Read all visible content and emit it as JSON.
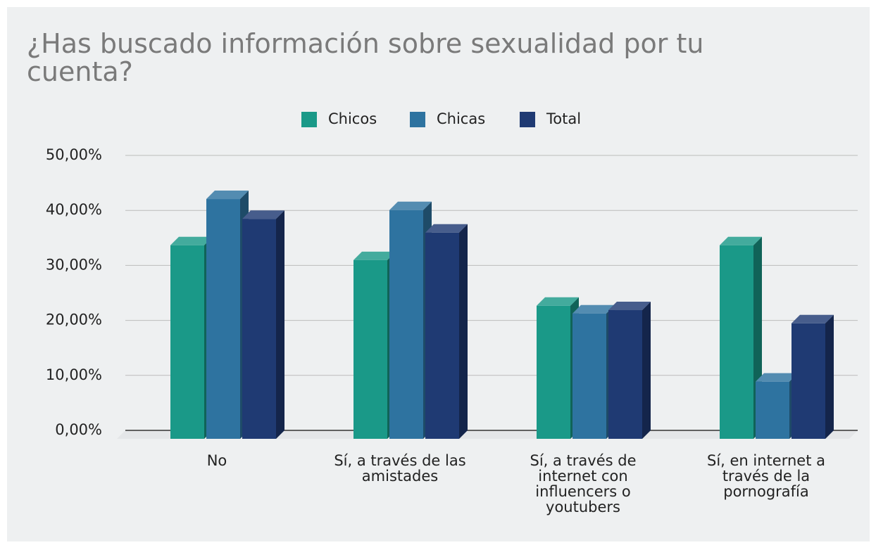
{
  "chart_data": {
    "type": "bar3d",
    "title": "¿Has buscado información sobre sexualidad por tu cuenta?",
    "categories": [
      "No",
      "Sí, a través de las amistades",
      "Sí, a través de internet con influencers o youtubers",
      "Sí, en internet a través de la pornografía"
    ],
    "series": [
      {
        "name": "Chicos",
        "color": "#1a9988",
        "values": [
          35.2,
          32.5,
          24.2,
          35.2
        ]
      },
      {
        "name": "Chicas",
        "color": "#2e73a0",
        "values": [
          43.6,
          41.6,
          22.8,
          10.4
        ]
      },
      {
        "name": "Total",
        "color": "#1f3a73",
        "values": [
          40.0,
          37.5,
          23.4,
          21.0
        ]
      }
    ],
    "ylim": [
      0,
      50
    ],
    "yticks": [
      {
        "value": 0,
        "label": "0,00%"
      },
      {
        "value": 10,
        "label": "10,00%"
      },
      {
        "value": 20,
        "label": "20,00%"
      },
      {
        "value": 30,
        "label": "30,00%"
      },
      {
        "value": 40,
        "label": "40,00%"
      },
      {
        "value": 50,
        "label": "50,00%"
      }
    ],
    "grid": true,
    "legend": "top"
  }
}
